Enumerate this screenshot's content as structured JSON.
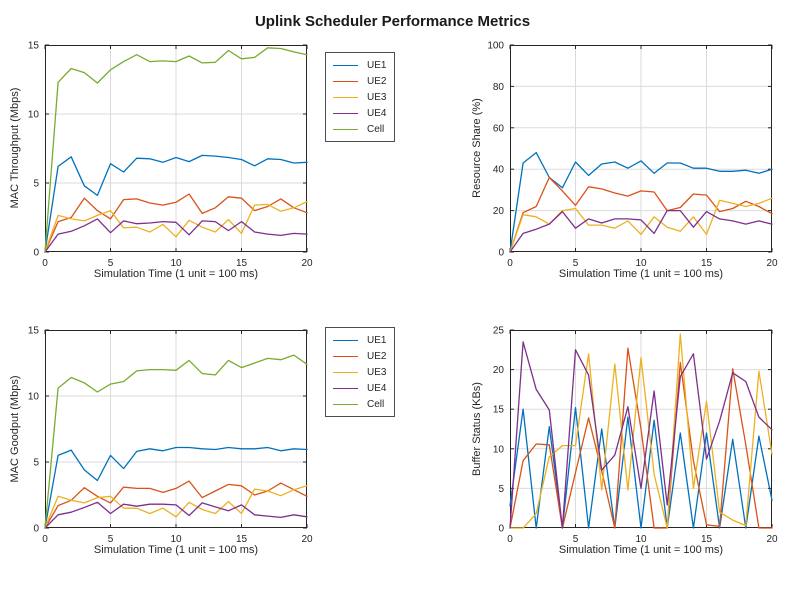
{
  "figure": {
    "title": "Uplink Scheduler Performance Metrics",
    "background": "#ffffff"
  },
  "palette": {
    "UE1": "#0072BD",
    "UE2": "#D95319",
    "UE3": "#EDB120",
    "UE4": "#7E2F8E",
    "Cell": "#77AC30"
  },
  "axis_style": {
    "axis_color": "#262626",
    "grid_color": "#dbdbdb",
    "tick_label_color": "#262626"
  },
  "chart_data": [
    {
      "id": "mac-throughput",
      "type": "line",
      "title": "",
      "xlabel": "Simulation Time (1 unit = 100 ms)",
      "ylabel": "MAC Throughput (Mbps)",
      "xlim": [
        0,
        20
      ],
      "ylim": [
        0,
        15
      ],
      "xticks": [
        0,
        5,
        10,
        15,
        20
      ],
      "yticks": [
        0,
        5,
        10,
        15
      ],
      "grid": true,
      "legend": [
        "UE1",
        "UE2",
        "UE3",
        "UE4",
        "Cell"
      ],
      "legend_position": "outside-right",
      "x": [
        0,
        1,
        2,
        3,
        4,
        5,
        6,
        7,
        8,
        9,
        10,
        11,
        12,
        13,
        14,
        15,
        16,
        17,
        18,
        19,
        20
      ],
      "series": [
        {
          "name": "UE1",
          "color": "#0072BD",
          "values": [
            0,
            6.2,
            6.9,
            4.8,
            4.1,
            6.4,
            5.8,
            6.8,
            6.75,
            6.5,
            6.85,
            6.55,
            7.0,
            6.95,
            6.85,
            6.7,
            6.25,
            6.75,
            6.7,
            6.45,
            6.5
          ]
        },
        {
          "name": "UE2",
          "color": "#D95319",
          "values": [
            0,
            2.2,
            2.5,
            3.9,
            3.0,
            2.4,
            3.8,
            3.85,
            3.55,
            3.4,
            3.6,
            4.2,
            2.8,
            3.2,
            4.0,
            3.9,
            3.0,
            3.3,
            3.85,
            3.2,
            2.85
          ]
        },
        {
          "name": "UE3",
          "color": "#EDB120",
          "values": [
            0,
            2.65,
            2.4,
            2.25,
            2.65,
            3.0,
            1.75,
            1.8,
            1.45,
            2.0,
            1.1,
            2.3,
            1.8,
            1.45,
            2.35,
            1.35,
            3.4,
            3.45,
            2.95,
            3.2,
            3.65
          ]
        },
        {
          "name": "UE4",
          "color": "#7E2F8E",
          "values": [
            0,
            1.3,
            1.5,
            1.9,
            2.4,
            1.4,
            2.25,
            2.05,
            2.1,
            2.2,
            2.15,
            1.25,
            2.25,
            2.2,
            1.55,
            2.2,
            1.45,
            1.3,
            1.2,
            1.35,
            1.3
          ]
        },
        {
          "name": "Cell",
          "color": "#77AC30",
          "values": [
            0,
            12.3,
            13.3,
            13.0,
            12.25,
            13.2,
            13.8,
            14.3,
            13.8,
            13.85,
            13.8,
            14.2,
            13.7,
            13.75,
            14.6,
            14.0,
            14.1,
            14.8,
            14.75,
            14.5,
            14.3
          ]
        }
      ]
    },
    {
      "id": "resource-share",
      "type": "line",
      "title": "",
      "xlabel": "Simulation Time (1 unit = 100 ms)",
      "ylabel": "Resource Share (%)",
      "xlim": [
        0,
        20
      ],
      "ylim": [
        0,
        100
      ],
      "xticks": [
        0,
        5,
        10,
        15,
        20
      ],
      "yticks": [
        0,
        20,
        40,
        60,
        80,
        100
      ],
      "grid": true,
      "legend": null,
      "x": [
        0,
        1,
        2,
        3,
        4,
        5,
        6,
        7,
        8,
        9,
        10,
        11,
        12,
        13,
        14,
        15,
        16,
        17,
        18,
        19,
        20
      ],
      "series": [
        {
          "name": "UE1",
          "color": "#0072BD",
          "values": [
            0,
            43,
            48,
            36,
            31,
            43.5,
            37,
            42.5,
            43.5,
            40.5,
            44,
            38,
            43,
            43,
            40.5,
            40.5,
            39,
            39,
            39.5,
            38,
            40
          ]
        },
        {
          "name": "UE2",
          "color": "#D95319",
          "values": [
            0,
            19,
            22,
            36,
            29.5,
            22.5,
            31.5,
            30.5,
            28.5,
            27,
            29.5,
            29,
            20,
            21.5,
            28,
            27.5,
            19.5,
            21,
            24.5,
            22,
            18.5
          ]
        },
        {
          "name": "UE3",
          "color": "#EDB120",
          "values": [
            0,
            18,
            17,
            13.5,
            20,
            21,
            13,
            13,
            11.5,
            15,
            8.5,
            17,
            12,
            10,
            17,
            8.5,
            25,
            23.5,
            22,
            23.5,
            26
          ]
        },
        {
          "name": "UE4",
          "color": "#7E2F8E",
          "values": [
            0,
            9,
            11,
            13.5,
            19.5,
            11.5,
            16,
            14,
            16,
            16,
            15.5,
            9,
            20,
            20,
            12,
            19.5,
            16,
            15,
            13.5,
            15,
            13.5
          ]
        }
      ]
    },
    {
      "id": "mac-goodput",
      "type": "line",
      "title": "",
      "xlabel": "Simulation Time (1 unit = 100 ms)",
      "ylabel": "MAC Goodput (Mbps)",
      "xlim": [
        0,
        20
      ],
      "ylim": [
        0,
        15
      ],
      "xticks": [
        0,
        5,
        10,
        15,
        20
      ],
      "yticks": [
        0,
        5,
        10,
        15
      ],
      "grid": true,
      "legend": [
        "UE1",
        "UE2",
        "UE3",
        "UE4",
        "Cell"
      ],
      "legend_position": "outside-right",
      "x": [
        0,
        1,
        2,
        3,
        4,
        5,
        6,
        7,
        8,
        9,
        10,
        11,
        12,
        13,
        14,
        15,
        16,
        17,
        18,
        19,
        20
      ],
      "series": [
        {
          "name": "UE1",
          "color": "#0072BD",
          "values": [
            0,
            5.5,
            5.9,
            4.4,
            3.6,
            5.5,
            4.5,
            5.8,
            6.0,
            5.85,
            6.1,
            6.1,
            6.0,
            5.95,
            6.1,
            6.0,
            6.0,
            6.1,
            5.85,
            6.0,
            5.95
          ]
        },
        {
          "name": "UE2",
          "color": "#D95319",
          "values": [
            0,
            1.7,
            2.1,
            3.05,
            2.4,
            1.9,
            3.1,
            3.0,
            3.0,
            2.7,
            3.0,
            3.55,
            2.3,
            2.8,
            3.3,
            3.2,
            2.5,
            2.8,
            3.4,
            2.9,
            2.4
          ]
        },
        {
          "name": "UE3",
          "color": "#EDB120",
          "values": [
            0,
            2.4,
            2.1,
            1.9,
            2.3,
            2.4,
            1.5,
            1.5,
            1.1,
            1.5,
            0.85,
            1.95,
            1.4,
            1.1,
            2.0,
            1.1,
            2.95,
            2.8,
            2.45,
            2.9,
            3.2
          ]
        },
        {
          "name": "UE4",
          "color": "#7E2F8E",
          "values": [
            0,
            1.0,
            1.2,
            1.55,
            1.95,
            1.1,
            1.8,
            1.65,
            1.8,
            1.8,
            1.75,
            0.95,
            1.9,
            1.6,
            1.3,
            1.75,
            1.0,
            0.9,
            0.8,
            1.0,
            0.85
          ]
        },
        {
          "name": "Cell",
          "color": "#77AC30",
          "values": [
            0,
            10.6,
            11.4,
            11.0,
            10.3,
            10.9,
            11.1,
            11.9,
            12.0,
            12.0,
            11.95,
            12.7,
            11.7,
            11.6,
            12.7,
            12.15,
            12.5,
            12.85,
            12.75,
            13.1,
            12.4
          ]
        }
      ]
    },
    {
      "id": "buffer-status",
      "type": "line",
      "title": "",
      "xlabel": "Simulation Time (1 unit = 100 ms)",
      "ylabel": "Buffer Status (KBs)",
      "xlim": [
        0,
        20
      ],
      "ylim": [
        0,
        25
      ],
      "xticks": [
        0,
        5,
        10,
        15,
        20
      ],
      "yticks": [
        0,
        5,
        10,
        15,
        20,
        25
      ],
      "grid": true,
      "legend": null,
      "x": [
        0,
        1,
        2,
        3,
        4,
        5,
        6,
        7,
        8,
        9,
        10,
        11,
        12,
        13,
        14,
        15,
        16,
        17,
        18,
        19,
        20
      ],
      "series": [
        {
          "name": "UE1",
          "color": "#0072BD",
          "values": [
            2.8,
            15,
            0,
            12.8,
            0,
            15.2,
            0,
            12.5,
            0,
            14,
            0,
            13.6,
            0,
            12,
            0,
            12,
            0,
            11.2,
            0,
            11.6,
            3.5
          ]
        },
        {
          "name": "UE2",
          "color": "#D95319",
          "values": [
            0,
            8.5,
            10.6,
            10.5,
            0,
            7,
            13.9,
            7.2,
            0,
            22.7,
            12.5,
            0,
            0,
            20.9,
            8.5,
            0.4,
            0.2,
            20.1,
            10.5,
            0,
            0
          ]
        },
        {
          "name": "UE3",
          "color": "#EDB120",
          "values": [
            0,
            0,
            1.8,
            9,
            10.4,
            10.4,
            22,
            4.8,
            20.7,
            4.8,
            21.5,
            6.8,
            0,
            24.5,
            5,
            16,
            2,
            1,
            0.3,
            19.8,
            9.3
          ]
        },
        {
          "name": "UE4",
          "color": "#7E2F8E",
          "values": [
            0,
            23.5,
            17.5,
            14.9,
            0,
            22.5,
            19.3,
            7.3,
            9.2,
            15.3,
            5,
            17.3,
            2.9,
            19.1,
            22,
            8.7,
            13.5,
            19.6,
            18.5,
            14,
            12.4
          ]
        }
      ]
    }
  ]
}
